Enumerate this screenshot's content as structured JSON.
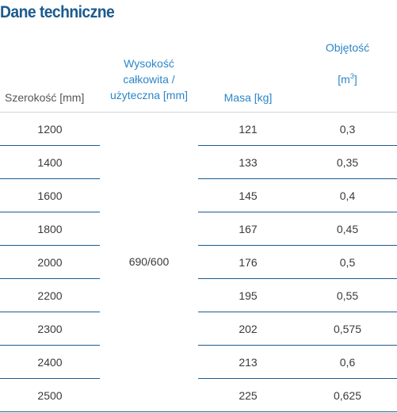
{
  "title": "Dane techniczne",
  "headers": {
    "width": "Szerokość [mm]",
    "height_line1": "Wysokość",
    "height_line2": "całkowita /",
    "height_line3": "użyteczna [mm]",
    "mass": "Masa [kg]",
    "volume_line1": "Objętość",
    "volume_unit_prefix": "[m",
    "volume_unit_sup": "3",
    "volume_unit_suffix": "]"
  },
  "height_value": "690/600",
  "rows": [
    {
      "width": "1200",
      "mass": "121",
      "volume": "0,3"
    },
    {
      "width": "1400",
      "mass": "133",
      "volume": "0,35"
    },
    {
      "width": "1600",
      "mass": "145",
      "volume": "0,4"
    },
    {
      "width": "1800",
      "mass": "167",
      "volume": "0,45"
    },
    {
      "width": "2000",
      "mass": "176",
      "volume": "0,5"
    },
    {
      "width": "2200",
      "mass": "195",
      "volume": "0,55"
    },
    {
      "width": "2300",
      "mass": "202",
      "volume": "0,575"
    },
    {
      "width": "2400",
      "mass": "213",
      "volume": "0,6"
    },
    {
      "width": "2500",
      "mass": "225",
      "volume": "0,625"
    }
  ],
  "colors": {
    "title": "#1c5b8e",
    "header_accent": "#2b86c8",
    "rule": "#1c5b8e"
  }
}
